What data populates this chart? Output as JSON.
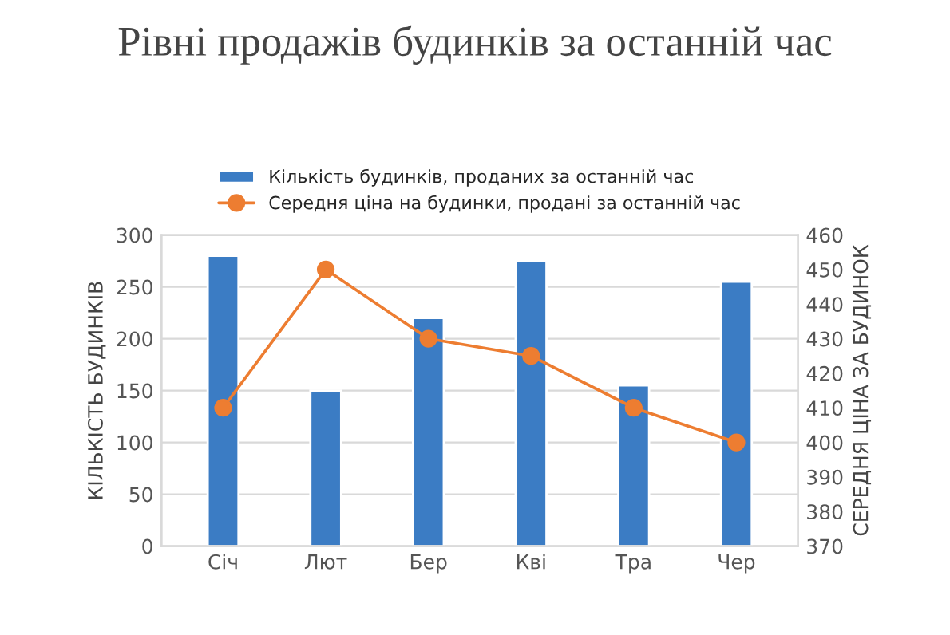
{
  "chart_data": {
    "type": "bar",
    "title": "Рівні продажів будинків за останній час",
    "ylabel": "КІЛЬКІСТЬ БУДИНКІВ",
    "y2label": "СЕРЕДНЯ ЦІНА ЗА БУДИНОК",
    "categories": [
      "Січ",
      "Лют",
      "Бер",
      "Кві",
      "Тра",
      "Чер"
    ],
    "series": [
      {
        "name": "Кількість будинків, проданих за останній час",
        "color": "#3b7cc4",
        "values": [
          280,
          150,
          220,
          275,
          155,
          255
        ]
      },
      {
        "name": "Середня ціна на будинки, продані за останній час",
        "color": "#ed7d31",
        "type": "line",
        "axis": "y2",
        "marker": "circle",
        "values": [
          410,
          450,
          430,
          425,
          410,
          400
        ]
      }
    ],
    "ylim": [
      0,
      300
    ],
    "yticks": [
      0,
      50,
      100,
      150,
      200,
      250,
      300
    ],
    "y2lim": [
      370,
      460
    ],
    "y2ticks": [
      370,
      380,
      390,
      400,
      410,
      420,
      430,
      440,
      450,
      460
    ],
    "grid": "y",
    "legend": "top"
  }
}
